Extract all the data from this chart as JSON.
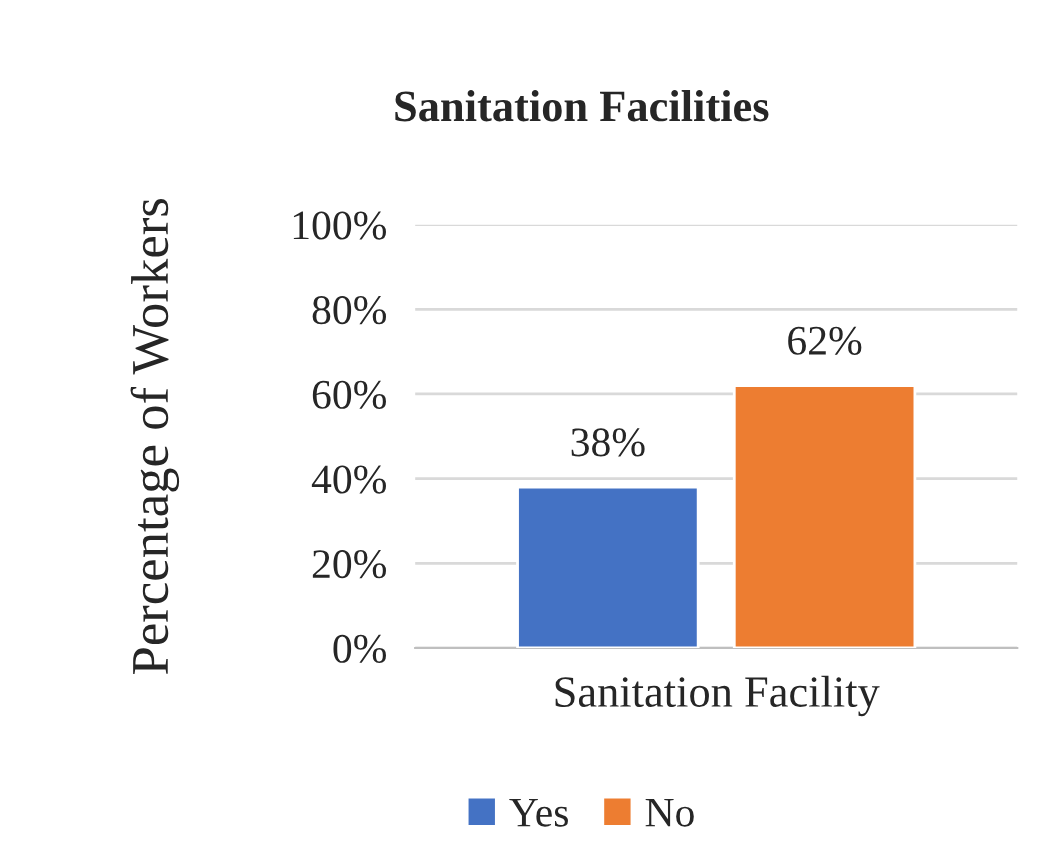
{
  "chart_data": {
    "type": "bar",
    "title": "Sanitation Facilities",
    "ylabel": "Percentage of Workers",
    "categories": [
      "Sanitation Facility"
    ],
    "series": [
      {
        "name": "Yes",
        "color": "#4472c4",
        "values": [
          38
        ],
        "value_labels": [
          "38%"
        ]
      },
      {
        "name": "No",
        "color": "#ed7d31",
        "values": [
          62
        ],
        "value_labels": [
          "62%"
        ]
      }
    ],
    "ylim": [
      0,
      100
    ],
    "yticks": [
      {
        "value": 0,
        "label": "0%"
      },
      {
        "value": 20,
        "label": "20%"
      },
      {
        "value": 40,
        "label": "40%"
      },
      {
        "value": 60,
        "label": "60%"
      },
      {
        "value": 80,
        "label": "80%"
      },
      {
        "value": 100,
        "label": "100%"
      }
    ],
    "grid": "y",
    "legend": "bottom"
  }
}
